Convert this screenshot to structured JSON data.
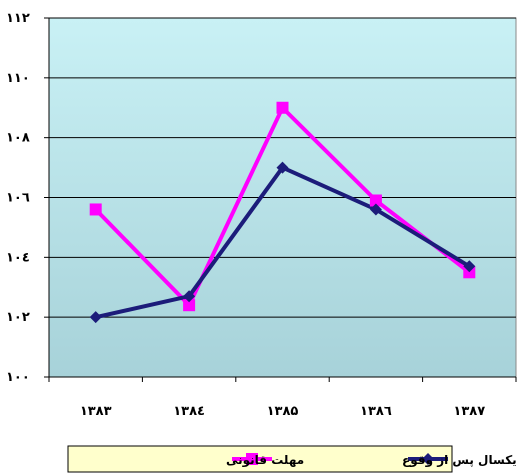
{
  "chart_data": {
    "type": "line",
    "title": "",
    "xlabel": "",
    "ylabel": "",
    "categories": [
      "۱۳۸۳",
      "۱۳۸٤",
      "۱۳۸۵",
      "۱۳۸٦",
      "۱۳۸۷"
    ],
    "ylim": [
      100,
      112
    ],
    "yticks": [
      {
        "value": 100,
        "label": "۱۰۰"
      },
      {
        "value": 102,
        "label": "۱۰۲"
      },
      {
        "value": 104,
        "label": "۱۰٤"
      },
      {
        "value": 106,
        "label": "۱۰٦"
      },
      {
        "value": 108,
        "label": "۱۰۸"
      },
      {
        "value": 110,
        "label": "۱۱۰"
      },
      {
        "value": 112,
        "label": "۱۱۲"
      }
    ],
    "grid": "horizontal",
    "legend_position": "bottom",
    "series": [
      {
        "name": "ثبت تا یکسال پس از وقوع",
        "values": [
          102.0,
          102.7,
          107.0,
          105.6,
          103.7
        ],
        "color": "#1c1c7a",
        "marker": "diamond"
      },
      {
        "name": "مهلت قانونی",
        "values": [
          105.6,
          102.4,
          109.0,
          105.9,
          103.5
        ],
        "color": "#ff00ff",
        "marker": "square"
      }
    ],
    "colors": {
      "plot_background": "#b7e3e9",
      "gridline": "#000000"
    }
  }
}
